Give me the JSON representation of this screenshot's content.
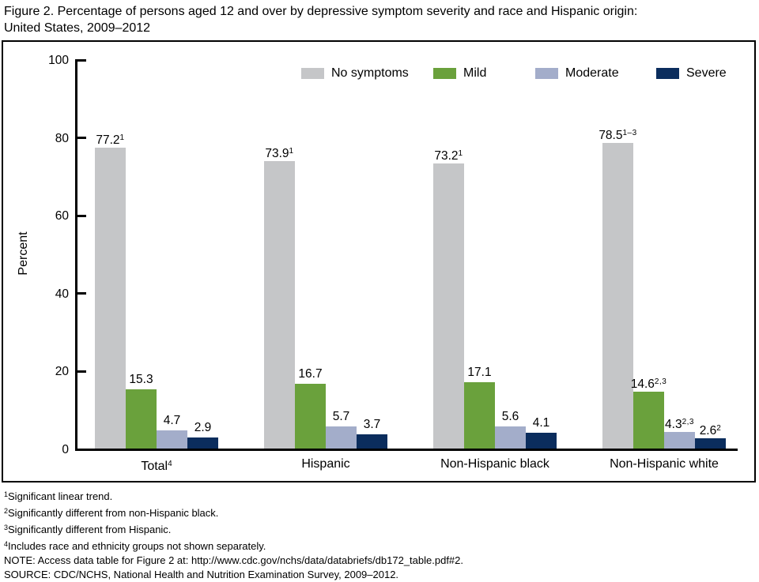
{
  "title": {
    "line1": "Figure 2. Percentage of persons aged 12 and over by depressive symptom severity and race and Hispanic origin:",
    "line2": "United States, 2009–2012"
  },
  "chart_data": {
    "type": "bar",
    "title": "Percentage of persons aged 12 and over by depressive symptom severity and race and Hispanic origin: United States, 2009–2012",
    "xlabel": "",
    "ylabel": "Percent",
    "ylim": [
      0,
      100
    ],
    "yticks": [
      0,
      20,
      40,
      60,
      80,
      100
    ],
    "grid": "off",
    "legend_position": "top-inside",
    "categories": [
      {
        "label": "Total",
        "sup": "4"
      },
      {
        "label": "Hispanic",
        "sup": ""
      },
      {
        "label": "Non-Hispanic black",
        "sup": ""
      },
      {
        "label": "Non-Hispanic white",
        "sup": ""
      }
    ],
    "series": [
      {
        "name": "No symptoms",
        "color": "#c5c6c8",
        "values": [
          77.2,
          73.9,
          73.2,
          78.5
        ],
        "sups": [
          "1",
          "1",
          "1",
          "1–3"
        ]
      },
      {
        "name": "Mild",
        "color": "#6aa13c",
        "values": [
          15.3,
          16.7,
          17.1,
          14.6
        ],
        "sups": [
          "",
          "",
          "",
          "2,3"
        ]
      },
      {
        "name": "Moderate",
        "color": "#a3adca",
        "values": [
          4.7,
          5.7,
          5.6,
          4.3
        ],
        "sups": [
          "",
          "",
          "",
          "2,3"
        ]
      },
      {
        "name": "Severe",
        "color": "#0b2d5d",
        "values": [
          2.9,
          3.7,
          4.1,
          2.6
        ],
        "sups": [
          "",
          "",
          "",
          "2"
        ]
      }
    ]
  },
  "footnotes": [
    {
      "sup": "1",
      "text": "Significant linear trend."
    },
    {
      "sup": "2",
      "text": "Significantly different from non-Hispanic black."
    },
    {
      "sup": "3",
      "text": "Significantly different from Hispanic."
    },
    {
      "sup": "4",
      "text": "Includes race and ethnicity groups not shown separately."
    },
    {
      "sup": "",
      "text": "NOTE: Access data table for Figure 2 at: http://www.cdc.gov/nchs/data/databriefs/db172_table.pdf#2."
    },
    {
      "sup": "",
      "text": "SOURCE: CDC/NCHS, National Health and Nutrition Examination Survey, 2009–2012."
    }
  ]
}
